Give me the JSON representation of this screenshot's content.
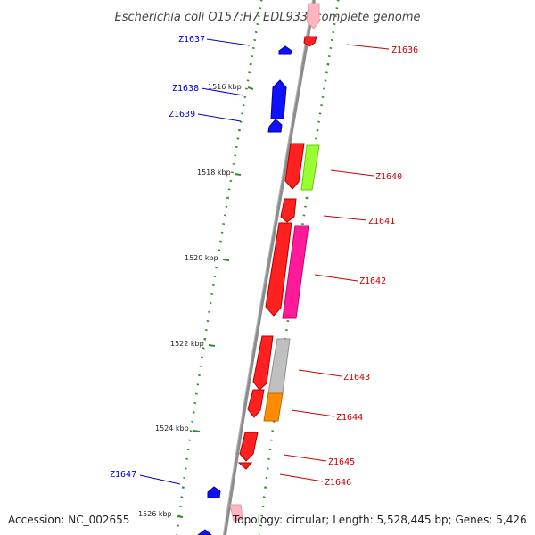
{
  "title": "Escherichia coli O157:H7 EDL933, complete genome",
  "footer": {
    "accession": "Accession: NC_002655",
    "info": "Topology: circular; Length: 5,528,445 bp; Genes: 5,426"
  },
  "colors": {
    "backbone": "#8c8c8c",
    "ticks": "#2f8f2f",
    "forward_label": "#0000cc",
    "reverse_label": "#cc0000"
  },
  "kbp_ticks": [
    "1516 kbp",
    "1518 kbp",
    "1520 kbp",
    "1522 kbp",
    "1524 kbp",
    "1526 kbp"
  ],
  "genes": [
    {
      "id": "Z1636",
      "label": "Z1636",
      "strand": "reverse",
      "color": "#ff2020"
    },
    {
      "id": "Z1637",
      "label": "Z1637",
      "strand": "forward",
      "color": "#1010ff"
    },
    {
      "id": "Z1638",
      "label": "Z1638",
      "strand": "forward",
      "color": "#1010ff"
    },
    {
      "id": "Z1639",
      "label": "Z1639",
      "strand": "forward",
      "color": "#1010ff"
    },
    {
      "id": "Z1640",
      "label": "Z1640",
      "strand": "reverse",
      "color": "#ff2020"
    },
    {
      "id": "Z1641",
      "label": "Z1641",
      "strand": "reverse",
      "color": "#ff2020"
    },
    {
      "id": "Z1642",
      "label": "Z1642",
      "strand": "reverse",
      "color": "#ff2020"
    },
    {
      "id": "Z1643",
      "label": "Z1643",
      "strand": "reverse",
      "color": "#ff2020"
    },
    {
      "id": "Z1644",
      "label": "Z1644",
      "strand": "reverse",
      "color": "#ff2020"
    },
    {
      "id": "Z1645",
      "label": "Z1645",
      "strand": "reverse",
      "color": "#ff2020"
    },
    {
      "id": "Z1646",
      "label": "Z1646",
      "strand": "reverse",
      "color": "#ff2020"
    },
    {
      "id": "Z1647",
      "label": "Z1647",
      "strand": "forward",
      "color": "#1010ff"
    }
  ],
  "features": [
    {
      "id": "f-top-pink",
      "color": "#ffb6c1"
    },
    {
      "id": "f-lime",
      "color": "#99ff33"
    },
    {
      "id": "f-magenta",
      "color": "#ff1a99"
    },
    {
      "id": "f-grey",
      "color": "#c0c0c0"
    },
    {
      "id": "f-orange",
      "color": "#ff8c00"
    },
    {
      "id": "f-bottom-pink",
      "color": "#ffb6c1"
    }
  ]
}
